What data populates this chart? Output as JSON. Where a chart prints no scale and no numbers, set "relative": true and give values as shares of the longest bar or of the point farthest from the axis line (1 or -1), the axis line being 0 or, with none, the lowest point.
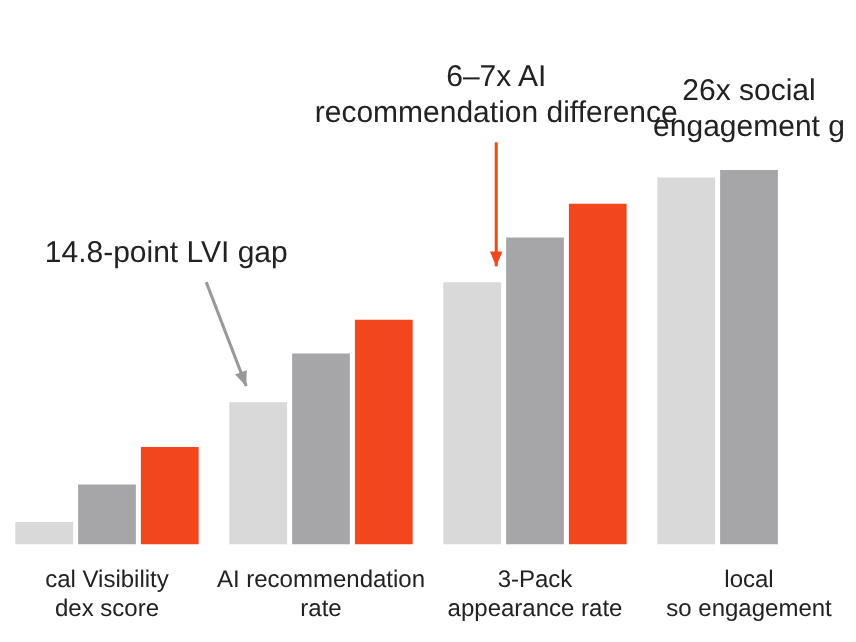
{
  "chart_data": {
    "type": "bar",
    "relative": true,
    "categories": [
      "cal Visibility dex score",
      "AI recommendation rate",
      "3-Pack appearance rate",
      "local so engagement"
    ],
    "series": [
      {
        "color": "#d9d9d9",
        "values": [
          0.06,
          0.38,
          0.7,
          0.98
        ]
      },
      {
        "color": "#a6a6a8",
        "values": [
          0.16,
          0.51,
          0.82,
          1.0
        ]
      },
      {
        "color": "#f2461c",
        "values": [
          0.26,
          0.6,
          0.91,
          null
        ]
      }
    ],
    "annotations": [
      "14.8-point LVI gap",
      "6–7x AI recommendation difference",
      "26x social engagement g"
    ],
    "grid": false,
    "legend": false
  }
}
